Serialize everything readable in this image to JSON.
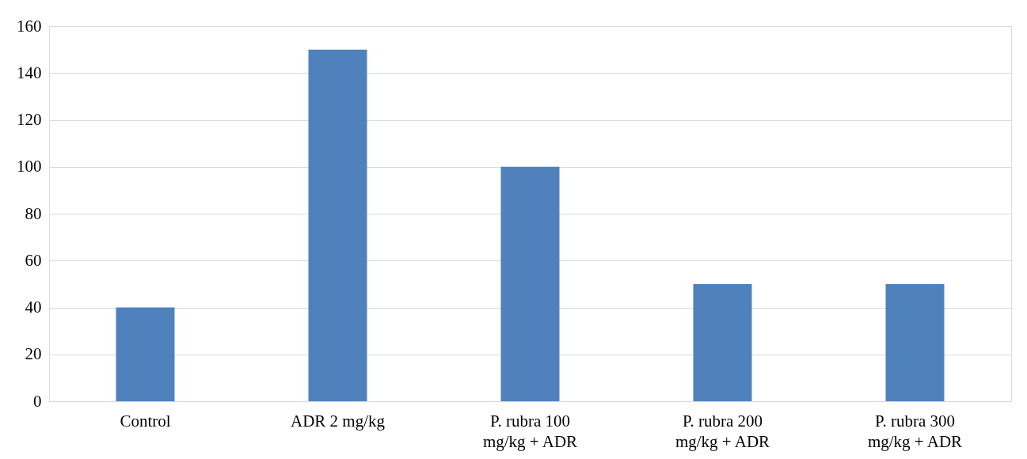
{
  "chart_data": {
    "type": "bar",
    "categories": [
      "Control",
      "ADR 2 mg/kg",
      "P. rubra 100 mg/kg + ADR",
      "P. rubra 200 mg/kg + ADR",
      "P. rubra 300 mg/kg + ADR"
    ],
    "values": [
      40,
      150,
      100,
      50,
      50
    ],
    "color": "#4f81bd",
    "ylim": [
      0,
      160
    ],
    "yticks": [
      0,
      20,
      40,
      60,
      80,
      100,
      120,
      140,
      160
    ],
    "grid": "y"
  }
}
